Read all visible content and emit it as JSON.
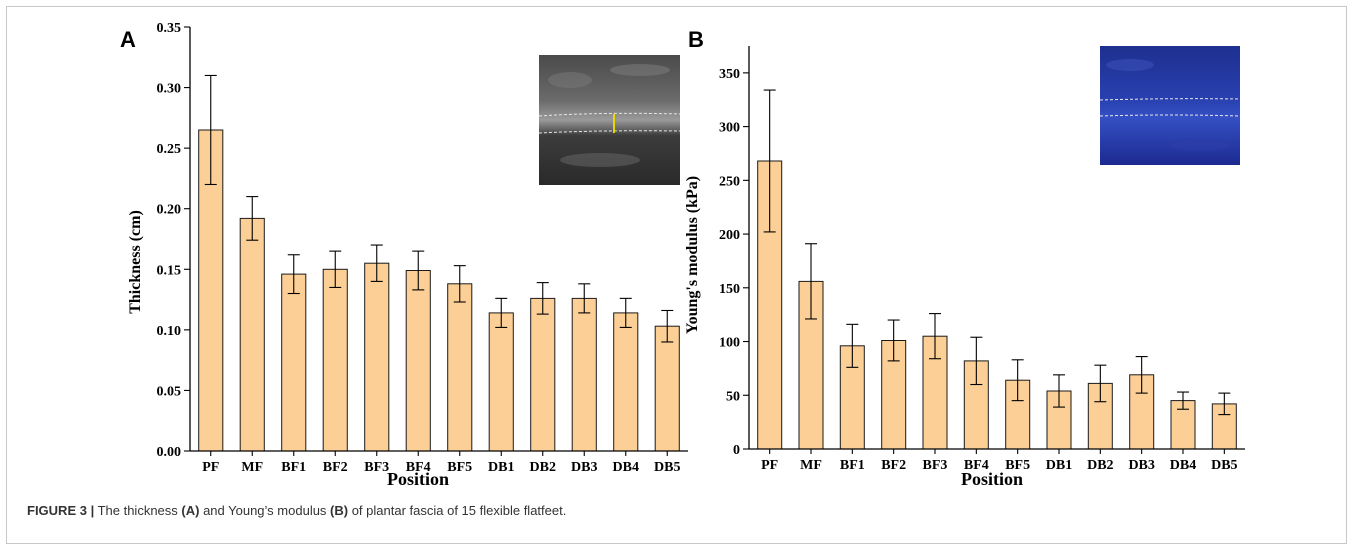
{
  "colors": {
    "bar_fill": "#fccf96",
    "bar_stroke": "#1a1a1a",
    "axis": "#000000"
  },
  "caption": {
    "label": "FIGURE 3 |",
    "text_1": " The thickness ",
    "ref_a": "(A)",
    "text_2": " and Young’s modulus ",
    "ref_b": "(B)",
    "text_3": " of plantar fascia of 15 flexible flatfeet."
  },
  "chart_data": [
    {
      "type": "bar",
      "panel_label": "A",
      "xlabel": "Position",
      "ylabel": "Thickness (cm)",
      "ylim": [
        0,
        0.35
      ],
      "yticks": [
        0.0,
        0.05,
        0.1,
        0.15,
        0.2,
        0.25,
        0.3,
        0.35
      ],
      "ytick_labels": [
        "0.00",
        "0.05",
        "0.10",
        "0.15",
        "0.20",
        "0.25",
        "0.30",
        "0.35"
      ],
      "categories": [
        "PF",
        "MF",
        "BF1",
        "BF2",
        "BF3",
        "BF4",
        "BF5",
        "DB1",
        "DB2",
        "DB3",
        "DB4",
        "DB5"
      ],
      "values": [
        0.265,
        0.192,
        0.146,
        0.15,
        0.155,
        0.149,
        0.138,
        0.114,
        0.126,
        0.126,
        0.114,
        0.103
      ],
      "errors": [
        0.045,
        0.018,
        0.016,
        0.015,
        0.015,
        0.016,
        0.015,
        0.012,
        0.013,
        0.012,
        0.012,
        0.013
      ],
      "inset": "grayscale ultrasound image of plantar fascia with thickness marker",
      "grid": false
    },
    {
      "type": "bar",
      "panel_label": "B",
      "xlabel": "Position",
      "ylabel": "Young's modulus (kPa)",
      "ylim": [
        0,
        375
      ],
      "yticks": [
        0,
        50,
        100,
        150,
        200,
        250,
        300,
        350
      ],
      "ytick_labels": [
        "0",
        "50",
        "100",
        "150",
        "200",
        "250",
        "300",
        "350"
      ],
      "categories": [
        "PF",
        "MF",
        "BF1",
        "BF2",
        "BF3",
        "BF4",
        "BF5",
        "DB1",
        "DB2",
        "DB3",
        "DB4",
        "DB5"
      ],
      "values": [
        268,
        156,
        96,
        101,
        105,
        82,
        64,
        54,
        61,
        69,
        45,
        42
      ],
      "errors": [
        66,
        35,
        20,
        19,
        21,
        22,
        19,
        15,
        17,
        17,
        8,
        10
      ],
      "inset": "blue shear-wave elastography image of plantar fascia",
      "grid": false
    }
  ]
}
